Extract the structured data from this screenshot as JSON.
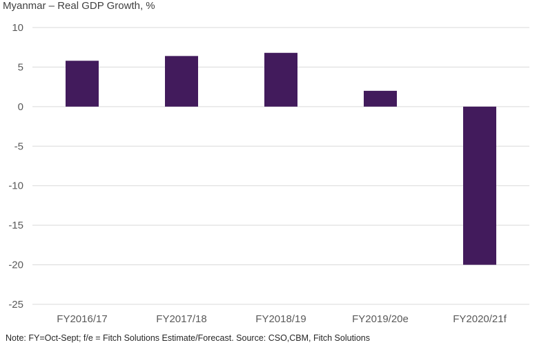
{
  "chart_data": {
    "type": "bar",
    "title": "Myanmar – Real GDP Growth, %",
    "categories": [
      "FY2016/17",
      "FY2017/18",
      "FY2018/19",
      "FY2019/20e",
      "FY2020/21f"
    ],
    "values": [
      5.8,
      6.4,
      6.8,
      2.0,
      -20.0
    ],
    "ylim": [
      -25,
      10
    ],
    "yticks": [
      10,
      5,
      0,
      -5,
      -10,
      -15,
      -20,
      -25
    ],
    "xlabel": "",
    "ylabel": "",
    "grid": true,
    "legend": "none",
    "bar_color": "#421b5c"
  },
  "note": "Note: FY=Oct-Sept; f/e = Fitch Solutions Estimate/Forecast. Source: CSO,CBM, Fitch Solutions"
}
